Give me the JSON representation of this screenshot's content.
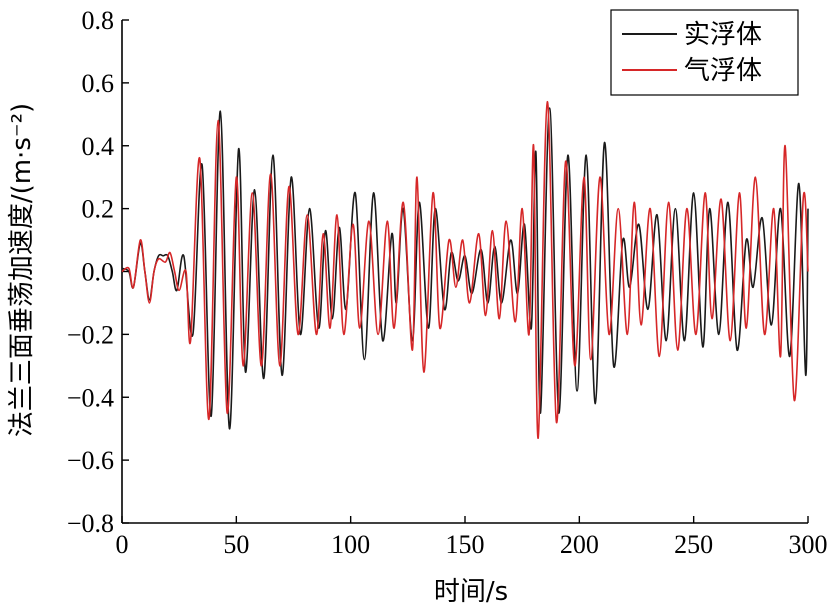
{
  "chart_data": {
    "type": "line",
    "xlabel": "时间/s",
    "ylabel": "法兰三面垂荡加速度/(m·s⁻²)",
    "xlim": [
      0,
      300
    ],
    "ylim": [
      -0.8,
      0.8
    ],
    "x_ticks": [
      0,
      50,
      100,
      150,
      200,
      250,
      300
    ],
    "y_ticks": [
      -0.8,
      -0.6,
      -0.4,
      -0.2,
      0.0,
      0.2,
      0.4,
      0.6,
      0.8
    ],
    "x_tick_labels": [
      "0",
      "50",
      "100",
      "150",
      "200",
      "250",
      "300"
    ],
    "y_tick_labels": [
      "−0.8",
      "−0.6",
      "−0.4",
      "−0.2",
      "0.0",
      "0.2",
      "0.4",
      "0.6",
      "0.8"
    ],
    "grid": false,
    "legend_position": "top-right",
    "series": [
      {
        "name": "实浮体",
        "color": "#1a1a1a",
        "points": [
          [
            0,
            0.01
          ],
          [
            3,
            0.0
          ],
          [
            5,
            -0.05
          ],
          [
            8,
            0.09
          ],
          [
            10,
            0.0
          ],
          [
            12,
            -0.09
          ],
          [
            14,
            0.0
          ],
          [
            16,
            0.05
          ],
          [
            18,
            0.05
          ],
          [
            20,
            0.05
          ],
          [
            22,
            0.0
          ],
          [
            24,
            -0.06
          ],
          [
            27,
            0.05
          ],
          [
            31,
            -0.2
          ],
          [
            35,
            0.34
          ],
          [
            39,
            -0.46
          ],
          [
            43,
            0.51
          ],
          [
            47,
            -0.5
          ],
          [
            51,
            0.39
          ],
          [
            54,
            -0.32
          ],
          [
            58,
            0.26
          ],
          [
            62,
            -0.34
          ],
          [
            66,
            0.37
          ],
          [
            70,
            -0.33
          ],
          [
            74,
            0.3
          ],
          [
            78,
            -0.2
          ],
          [
            82,
            0.2
          ],
          [
            86,
            -0.18
          ],
          [
            89,
            0.13
          ],
          [
            92,
            -0.15
          ],
          [
            95,
            0.14
          ],
          [
            98,
            -0.12
          ],
          [
            102,
            0.25
          ],
          [
            106,
            -0.28
          ],
          [
            110,
            0.25
          ],
          [
            114,
            -0.22
          ],
          [
            118,
            0.12
          ],
          [
            120,
            -0.1
          ],
          [
            123,
            0.2
          ],
          [
            127,
            -0.22
          ],
          [
            130,
            0.22
          ],
          [
            134,
            -0.18
          ],
          [
            137,
            0.2
          ],
          [
            141,
            -0.12
          ],
          [
            144,
            0.06
          ],
          [
            147,
            -0.03
          ],
          [
            150,
            0.05
          ],
          [
            153,
            -0.07
          ],
          [
            157,
            0.07
          ],
          [
            160,
            -0.1
          ],
          [
            163,
            0.08
          ],
          [
            166,
            -0.1
          ],
          [
            170,
            0.1
          ],
          [
            173,
            -0.07
          ],
          [
            176,
            0.15
          ],
          [
            179,
            -0.18
          ],
          [
            181,
            0.38
          ],
          [
            183,
            -0.45
          ],
          [
            187,
            0.52
          ],
          [
            191,
            -0.45
          ],
          [
            195,
            0.37
          ],
          [
            199,
            -0.38
          ],
          [
            203,
            0.37
          ],
          [
            207,
            -0.42
          ],
          [
            211,
            0.41
          ],
          [
            215,
            -0.3
          ],
          [
            219,
            0.1
          ],
          [
            222,
            -0.05
          ],
          [
            226,
            0.15
          ],
          [
            230,
            -0.12
          ],
          [
            234,
            0.18
          ],
          [
            238,
            -0.22
          ],
          [
            242,
            0.2
          ],
          [
            246,
            -0.22
          ],
          [
            250,
            0.25
          ],
          [
            254,
            -0.24
          ],
          [
            257,
            0.2
          ],
          [
            261,
            -0.2
          ],
          [
            265,
            0.22
          ],
          [
            269,
            -0.25
          ],
          [
            273,
            0.1
          ],
          [
            276,
            -0.05
          ],
          [
            280,
            0.17
          ],
          [
            284,
            -0.17
          ],
          [
            288,
            0.2
          ],
          [
            292,
            -0.27
          ],
          [
            296,
            0.28
          ],
          [
            299,
            -0.33
          ],
          [
            300,
            0.2
          ]
        ]
      },
      {
        "name": "气浮体",
        "color": "#d62728",
        "points": [
          [
            0,
            0.0
          ],
          [
            3,
            0.01
          ],
          [
            5,
            -0.05
          ],
          [
            8,
            0.1
          ],
          [
            10,
            0.0
          ],
          [
            12,
            -0.1
          ],
          [
            14,
            0.0
          ],
          [
            16,
            0.04
          ],
          [
            19,
            0.03
          ],
          [
            21,
            0.06
          ],
          [
            23,
            0.0
          ],
          [
            25,
            -0.06
          ],
          [
            28,
            0.0
          ],
          [
            30,
            -0.22
          ],
          [
            34,
            0.36
          ],
          [
            38,
            -0.47
          ],
          [
            42,
            0.48
          ],
          [
            46,
            -0.45
          ],
          [
            50,
            0.3
          ],
          [
            53,
            -0.3
          ],
          [
            57,
            0.25
          ],
          [
            61,
            -0.3
          ],
          [
            65,
            0.31
          ],
          [
            69,
            -0.3
          ],
          [
            73,
            0.27
          ],
          [
            77,
            -0.2
          ],
          [
            81,
            0.18
          ],
          [
            85,
            -0.2
          ],
          [
            88,
            0.12
          ],
          [
            91,
            -0.18
          ],
          [
            94,
            0.18
          ],
          [
            97,
            -0.2
          ],
          [
            101,
            0.15
          ],
          [
            104,
            -0.18
          ],
          [
            108,
            0.16
          ],
          [
            112,
            -0.2
          ],
          [
            116,
            0.16
          ],
          [
            119,
            -0.18
          ],
          [
            123,
            0.22
          ],
          [
            127,
            -0.25
          ],
          [
            129,
            0.3
          ],
          [
            132,
            -0.32
          ],
          [
            136,
            0.25
          ],
          [
            139,
            -0.18
          ],
          [
            143,
            0.1
          ],
          [
            146,
            -0.05
          ],
          [
            149,
            0.1
          ],
          [
            152,
            -0.1
          ],
          [
            156,
            0.12
          ],
          [
            159,
            -0.14
          ],
          [
            162,
            0.13
          ],
          [
            165,
            -0.15
          ],
          [
            168,
            0.16
          ],
          [
            172,
            -0.16
          ],
          [
            175,
            0.2
          ],
          [
            178,
            -0.2
          ],
          [
            180,
            0.4
          ],
          [
            182,
            -0.53
          ],
          [
            186,
            0.54
          ],
          [
            190,
            -0.48
          ],
          [
            194,
            0.35
          ],
          [
            198,
            -0.3
          ],
          [
            202,
            0.3
          ],
          [
            205,
            -0.28
          ],
          [
            209,
            0.3
          ],
          [
            213,
            -0.2
          ],
          [
            217,
            0.2
          ],
          [
            221,
            -0.2
          ],
          [
            224,
            0.22
          ],
          [
            227,
            -0.17
          ],
          [
            231,
            0.2
          ],
          [
            235,
            -0.27
          ],
          [
            239,
            0.22
          ],
          [
            243,
            -0.25
          ],
          [
            247,
            0.2
          ],
          [
            251,
            -0.2
          ],
          [
            255,
            0.25
          ],
          [
            258,
            -0.15
          ],
          [
            262,
            0.23
          ],
          [
            266,
            -0.22
          ],
          [
            270,
            0.25
          ],
          [
            273,
            -0.18
          ],
          [
            277,
            0.3
          ],
          [
            281,
            -0.2
          ],
          [
            285,
            0.2
          ],
          [
            288,
            -0.27
          ],
          [
            290,
            0.4
          ],
          [
            294,
            -0.41
          ],
          [
            298,
            0.24
          ],
          [
            300,
            0.0
          ]
        ]
      }
    ]
  }
}
